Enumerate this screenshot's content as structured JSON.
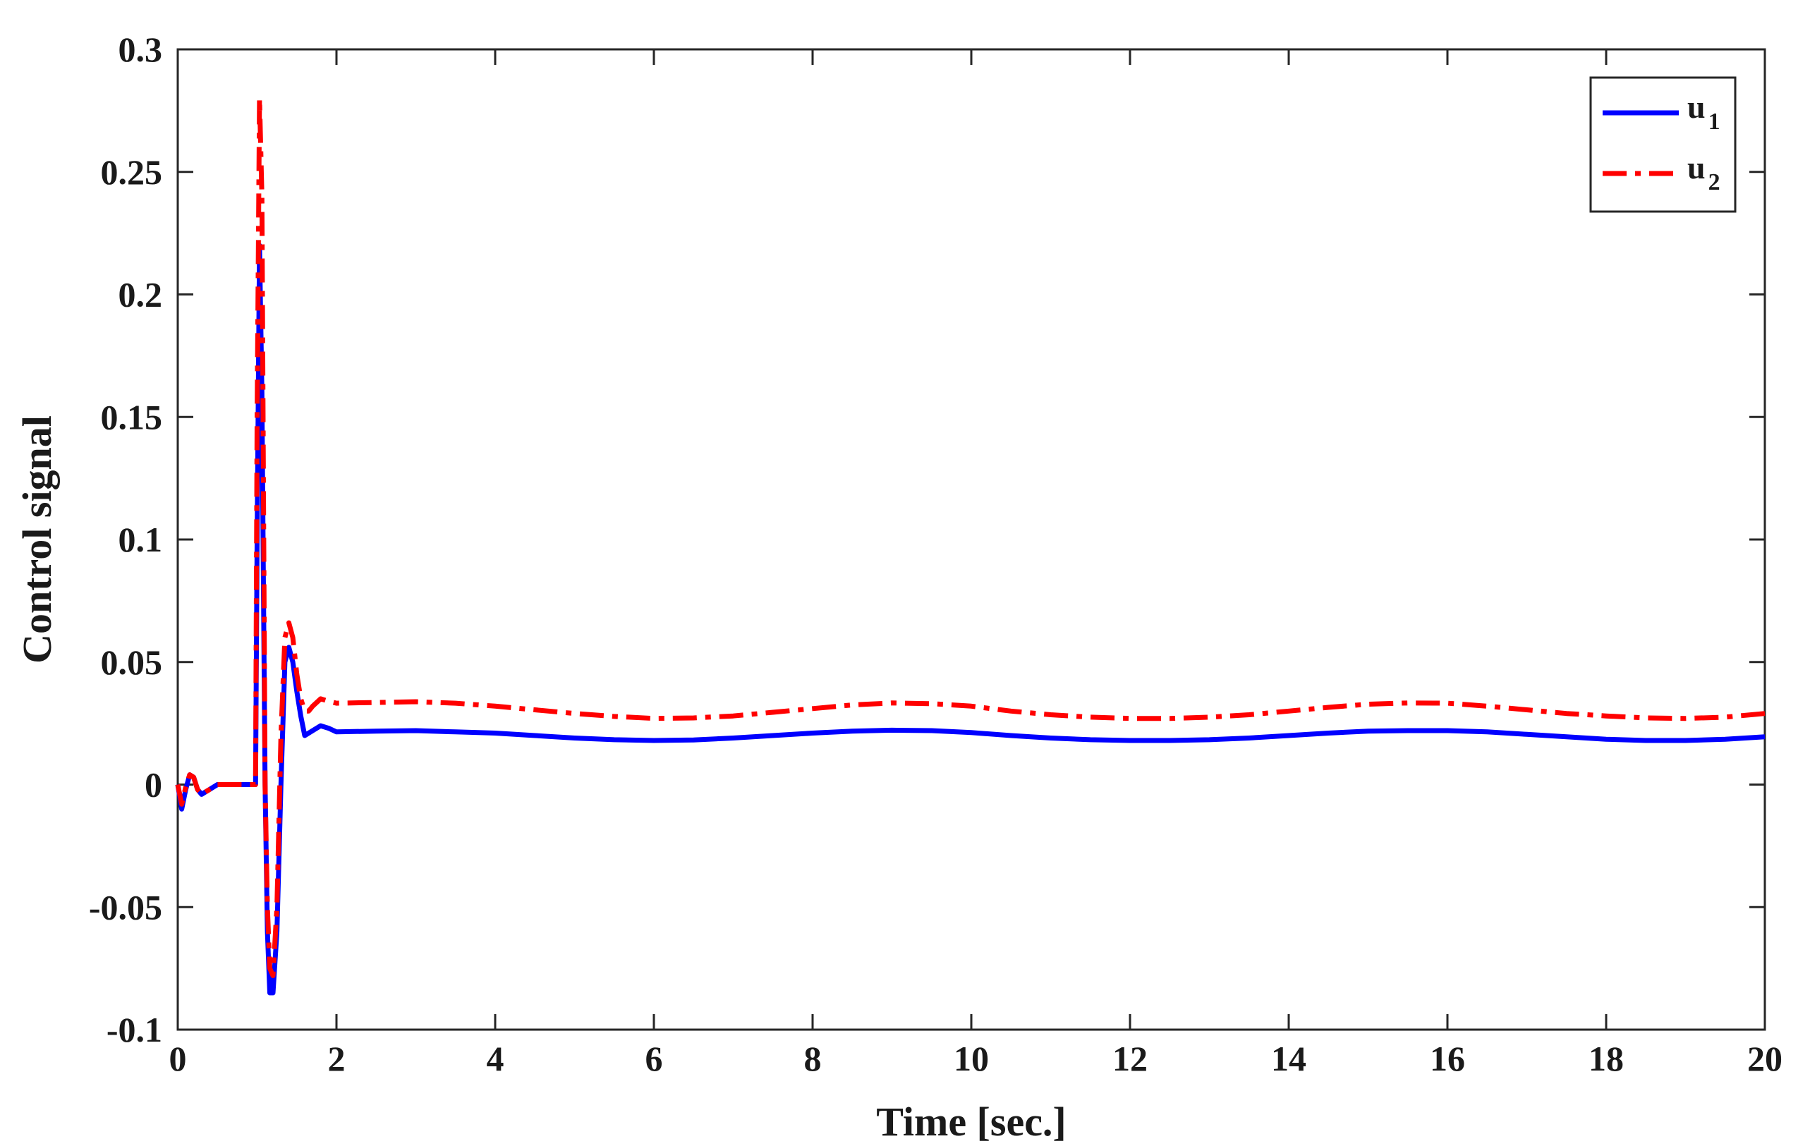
{
  "chart_data": {
    "type": "line",
    "title": "",
    "xlabel": "Time [sec.]",
    "ylabel": "Control signal",
    "xlim": [
      0,
      20
    ],
    "ylim": [
      -0.1,
      0.3
    ],
    "xticks": [
      0,
      2,
      4,
      6,
      8,
      10,
      12,
      14,
      16,
      18,
      20
    ],
    "yticks": [
      -0.1,
      -0.05,
      0,
      0.05,
      0.1,
      0.15,
      0.2,
      0.25,
      0.3
    ],
    "xtick_labels": [
      "0",
      "2",
      "4",
      "6",
      "8",
      "10",
      "12",
      "14",
      "16",
      "18",
      "20"
    ],
    "ytick_labels": [
      "-0.1",
      "-0.05",
      "0",
      "0.05",
      "0.1",
      "0.15",
      "0.2",
      "0.25",
      "0.3"
    ],
    "grid": false,
    "legend_position": "top-right",
    "series": [
      {
        "name": "u1",
        "legend_base": "u",
        "legend_sub": "1",
        "color": "#0000ff",
        "style": "solid",
        "x": [
          0,
          0.05,
          0.1,
          0.15,
          0.2,
          0.25,
          0.3,
          0.35,
          0.4,
          0.5,
          0.6,
          0.7,
          0.8,
          0.9,
          0.98,
          1.0,
          1.03,
          1.06,
          1.08,
          1.1,
          1.13,
          1.16,
          1.2,
          1.25,
          1.3,
          1.35,
          1.4,
          1.45,
          1.5,
          1.55,
          1.6,
          1.65,
          1.7,
          1.8,
          1.9,
          2.0,
          2.5,
          3,
          3.5,
          4,
          4.5,
          5,
          5.5,
          6,
          6.5,
          7,
          7.5,
          8,
          8.5,
          9,
          9.5,
          10,
          10.5,
          11,
          11.5,
          12,
          12.5,
          13,
          13.5,
          14,
          14.5,
          15,
          15.5,
          16,
          16.5,
          17,
          17.5,
          18,
          18.5,
          19,
          19.5,
          20
        ],
        "values": [
          0,
          -0.01,
          -0.002,
          0.004,
          0.003,
          -0.002,
          -0.004,
          -0.003,
          -0.002,
          0,
          0,
          0,
          0,
          0,
          0,
          0.1,
          0.22,
          0.16,
          0.08,
          0,
          -0.06,
          -0.085,
          -0.085,
          -0.06,
          0,
          0.05,
          0.056,
          0.05,
          0.038,
          0.028,
          0.02,
          0.021,
          0.022,
          0.024,
          0.023,
          0.0215,
          0.0218,
          0.022,
          0.0215,
          0.021,
          0.02,
          0.019,
          0.0183,
          0.018,
          0.0182,
          0.019,
          0.02,
          0.021,
          0.0218,
          0.0222,
          0.022,
          0.0212,
          0.02,
          0.019,
          0.0183,
          0.018,
          0.018,
          0.0183,
          0.019,
          0.02,
          0.021,
          0.0218,
          0.022,
          0.022,
          0.0215,
          0.0205,
          0.0195,
          0.0185,
          0.018,
          0.018,
          0.0185,
          0.0195
        ]
      },
      {
        "name": "u2",
        "legend_base": "u",
        "legend_sub": "2",
        "color": "#ff0000",
        "style": "dash-dot",
        "x": [
          0,
          0.05,
          0.1,
          0.15,
          0.2,
          0.25,
          0.3,
          0.35,
          0.4,
          0.5,
          0.6,
          0.7,
          0.8,
          0.9,
          0.98,
          1.0,
          1.03,
          1.06,
          1.08,
          1.1,
          1.13,
          1.16,
          1.2,
          1.25,
          1.3,
          1.35,
          1.4,
          1.45,
          1.5,
          1.55,
          1.6,
          1.65,
          1.7,
          1.8,
          1.9,
          2.0,
          2.5,
          3,
          3.5,
          4,
          4.5,
          5,
          5.5,
          6,
          6.5,
          7,
          7.5,
          8,
          8.5,
          9,
          9.5,
          10,
          10.5,
          11,
          11.5,
          12,
          12.5,
          13,
          13.5,
          14,
          14.5,
          15,
          15.5,
          16,
          16.5,
          17,
          17.5,
          18,
          18.5,
          19,
          19.5,
          20
        ],
        "values": [
          0,
          -0.008,
          -0.001,
          0.004,
          0.003,
          -0.002,
          -0.004,
          -0.003,
          -0.002,
          0,
          0,
          0,
          0,
          0,
          0,
          0.15,
          0.28,
          0.24,
          0.12,
          0,
          -0.05,
          -0.075,
          -0.078,
          -0.05,
          0.02,
          0.06,
          0.066,
          0.06,
          0.045,
          0.035,
          0.03,
          0.03,
          0.032,
          0.035,
          0.034,
          0.0332,
          0.0335,
          0.0338,
          0.0332,
          0.032,
          0.0305,
          0.029,
          0.0278,
          0.027,
          0.0272,
          0.028,
          0.0295,
          0.031,
          0.0325,
          0.0333,
          0.033,
          0.032,
          0.03,
          0.0285,
          0.0275,
          0.027,
          0.027,
          0.0275,
          0.0285,
          0.03,
          0.0315,
          0.0328,
          0.0333,
          0.0332,
          0.032,
          0.0305,
          0.029,
          0.028,
          0.0272,
          0.027,
          0.0275,
          0.029
        ]
      }
    ]
  }
}
